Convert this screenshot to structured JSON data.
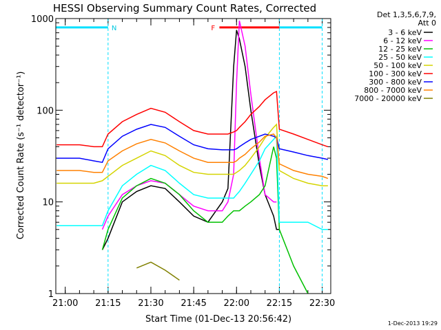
{
  "chart_data": {
    "type": "line",
    "title": "HESSI Observing Summary Count Rates, Corrected",
    "xlabel": "Start Time (01-Dec-13 20:56:42)",
    "ylabel": "Corrected Count Rate (s⁻¹ detector⁻¹)",
    "y_scale": "log",
    "ylim": [
      1,
      1000
    ],
    "xlim": [
      "20:56:42",
      "22:33:00"
    ],
    "x_ticks": [
      "21:00",
      "21:15",
      "21:30",
      "21:45",
      "22:00",
      "22:15",
      "22:30"
    ],
    "y_ticks": [
      "1",
      "10",
      "100",
      "1000"
    ],
    "legend_title": [
      "Det 1,3,5,6,7,9,",
      "Att 0"
    ],
    "legend_position": "right",
    "timestamp": "1-Dec-2013 19:29",
    "annotations": {
      "night_label": "N",
      "night_intervals": [
        [
          "20:56:42",
          "21:15:00"
        ],
        [
          "22:15:00",
          "22:30:00"
        ]
      ],
      "flare_label": "F",
      "flare_interval": [
        "21:54:00",
        "22:15:00"
      ]
    },
    "x": [
      "20:57",
      "21:05",
      "21:10",
      "21:13",
      "21:15",
      "21:20",
      "21:25",
      "21:30",
      "21:35",
      "21:40",
      "21:45",
      "21:50",
      "21:55",
      "21:57",
      "21:59",
      "22:00",
      "22:01",
      "22:03",
      "22:05",
      "22:08",
      "22:10",
      "22:13",
      "22:14",
      "22:15",
      "22:20",
      "22:25",
      "22:30",
      "22:32"
    ],
    "series": [
      {
        "name": "3 - 6 keV",
        "color": "#000000",
        "values": [
          null,
          null,
          null,
          3,
          4,
          10,
          13,
          15,
          14,
          10,
          7,
          6,
          10,
          14,
          300,
          750,
          600,
          300,
          100,
          25,
          12,
          7,
          5,
          5,
          null,
          null,
          null,
          null
        ]
      },
      {
        "name": "6 - 12 keV",
        "color": "#ff00ff",
        "values": [
          null,
          null,
          null,
          5,
          7,
          12,
          15,
          17,
          16,
          12,
          9,
          8,
          8,
          10,
          20,
          200,
          950,
          500,
          150,
          30,
          12,
          10,
          10,
          null,
          null,
          null,
          null,
          null
        ]
      },
      {
        "name": "12 - 25 keV",
        "color": "#00c000",
        "values": [
          null,
          null,
          null,
          3,
          5,
          11,
          15,
          18,
          16,
          12,
          8,
          6,
          6,
          7,
          8,
          8,
          8,
          9,
          10,
          12,
          15,
          40,
          30,
          5,
          2,
          1,
          null,
          null
        ]
      },
      {
        "name": "25 - 50 keV",
        "color": "#00ffff",
        "values": [
          5.5,
          5.5,
          5.5,
          5.5,
          8,
          15,
          20,
          25,
          22,
          16,
          12,
          11,
          11,
          11,
          11,
          12,
          13,
          16,
          20,
          28,
          38,
          48,
          52,
          6,
          6,
          6,
          5,
          5
        ]
      },
      {
        "name": "50 - 100 keV",
        "color": "#d4d400",
        "values": [
          16,
          16,
          16,
          17,
          19,
          25,
          30,
          36,
          32,
          25,
          21,
          20,
          20,
          20,
          20,
          21,
          22,
          25,
          30,
          40,
          50,
          65,
          70,
          22,
          18,
          16,
          15,
          15
        ]
      },
      {
        "name": "100 - 300 keV",
        "color": "#ff0000",
        "values": [
          42,
          42,
          40,
          40,
          55,
          75,
          90,
          105,
          95,
          75,
          60,
          55,
          55,
          55,
          58,
          60,
          65,
          75,
          90,
          110,
          130,
          155,
          160,
          62,
          55,
          48,
          42,
          40
        ]
      },
      {
        "name": "300 - 800 keV",
        "color": "#0000ff",
        "values": [
          30,
          30,
          28,
          27,
          38,
          52,
          62,
          70,
          65,
          52,
          42,
          38,
          37,
          37,
          37,
          38,
          40,
          44,
          48,
          52,
          55,
          52,
          50,
          38,
          35,
          32,
          30,
          29
        ]
      },
      {
        "name": "800 - 7000 keV",
        "color": "#ff8000",
        "values": [
          22,
          22,
          21,
          21,
          28,
          36,
          43,
          48,
          44,
          36,
          30,
          27,
          27,
          27,
          27,
          28,
          30,
          33,
          38,
          45,
          52,
          55,
          50,
          26,
          22,
          20,
          19,
          18
        ]
      },
      {
        "name": "7000 - 20000 keV",
        "color": "#808000",
        "values": [
          null,
          null,
          null,
          null,
          null,
          null,
          1.9,
          2.2,
          1.8,
          1.4,
          null,
          null,
          null,
          null,
          null,
          null,
          null,
          null,
          null,
          null,
          null,
          null,
          null,
          null,
          null,
          null,
          null,
          null
        ]
      }
    ]
  }
}
